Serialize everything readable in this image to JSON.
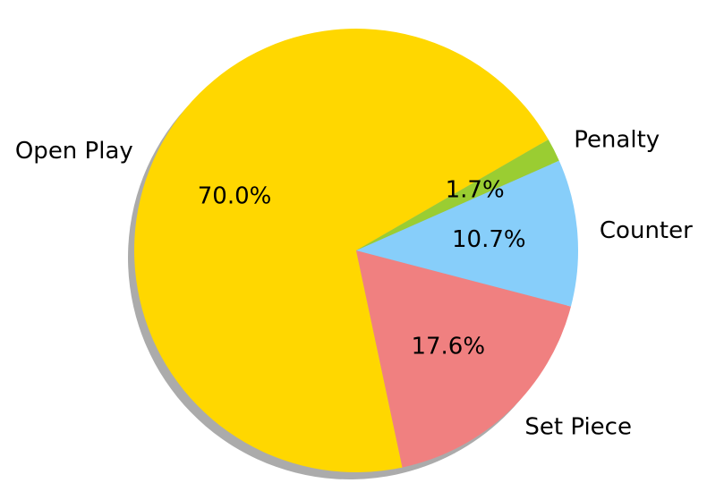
{
  "chart_data": {
    "type": "pie",
    "title": "",
    "start_angle_deg": 30,
    "counterclockwise": true,
    "shadow": true,
    "slices": [
      {
        "label": "Open Play",
        "value": 70.0,
        "pct_text": "70.0%",
        "color": "#FFD700"
      },
      {
        "label": "Set Piece",
        "value": 17.6,
        "pct_text": "17.6%",
        "color": "#F08080"
      },
      {
        "label": "Counter",
        "value": 10.7,
        "pct_text": "10.7%",
        "color": "#87CEFA"
      },
      {
        "label": "Penalty",
        "value": 1.7,
        "pct_text": "1.7%",
        "color": "#9ACD32"
      }
    ]
  }
}
